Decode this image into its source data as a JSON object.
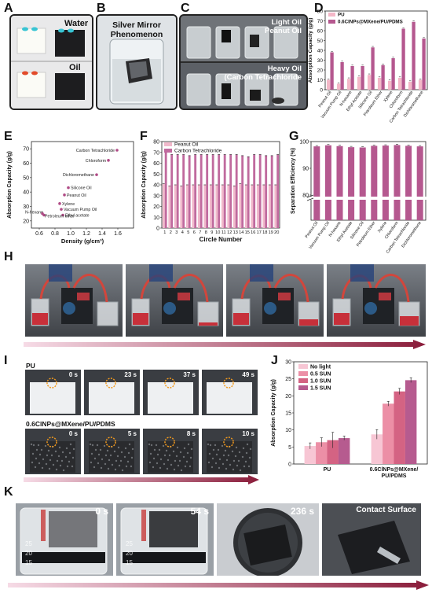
{
  "panels": {
    "A": "A",
    "B": "B",
    "C": "C",
    "D": "D",
    "E": "E",
    "F": "F",
    "G": "G",
    "H": "H",
    "I": "I",
    "J": "J",
    "K": "K"
  },
  "panel_a": {
    "label_water": "Water",
    "label_oil": "Oil"
  },
  "panel_b": {
    "title": "Silver Mirror Phenomenon"
  },
  "panel_c": {
    "label_light": "Light Oil\nPeanut Oil",
    "label_heavy": "Heavy Oil\n(Carbon Tetrachloride"
  },
  "panel_i": {
    "row1_label": "PU",
    "row2_label": "0.6ClNPs@MXene/PU/PDMS",
    "row1_times": [
      "0 s",
      "23 s",
      "37 s",
      "49 s"
    ],
    "row2_times": [
      "0 s",
      "5 s",
      "8 s",
      "10 s"
    ]
  },
  "panel_k": {
    "times": [
      "0 s",
      "54 s",
      "236 s",
      "Contact Surface"
    ],
    "beaker_marks": [
      "25",
      "20",
      "15"
    ]
  },
  "colors": {
    "pu": "#f4b8c8",
    "comp": "#b5588f",
    "peanut": "#f1b9cb",
    "ccl4": "#c06a9e",
    "arrow_start": "#f6dbe6",
    "arrow_end": "#8a1c3a"
  },
  "chart_data": [
    {
      "id": "D",
      "type": "bar",
      "ylabel": "Absorption Capacity (g/g)",
      "ylim": [
        0,
        80
      ],
      "yticks": [
        0,
        10,
        20,
        30,
        40,
        50,
        60,
        70,
        80
      ],
      "categories": [
        "Peanut Oil",
        "Vacuum Pump Oil",
        "N-hexane",
        "Ethyl Acetate",
        "Silicone Oil",
        "Petroleum Ether",
        "Xylene",
        "Chloroform",
        "Carbon Tetrachloride",
        "Dichloromethane"
      ],
      "series": [
        {
          "name": "PU",
          "values": [
            10,
            6,
            11,
            13,
            15,
            12,
            9,
            12,
            8,
            10
          ]
        },
        {
          "name": "0.6ClNPs@MXene/PU/PDMS",
          "values": [
            38,
            28,
            24,
            24,
            43,
            25,
            32,
            62,
            69,
            52
          ]
        }
      ],
      "legend": "top-left"
    },
    {
      "id": "E",
      "type": "scatter",
      "xlabel": "Density (g/cm³)",
      "ylabel": "Absorption Capacity (g/g)",
      "xlim": [
        0.5,
        1.8
      ],
      "ylim": [
        15,
        75
      ],
      "xticks": [
        "0.6",
        "0.8",
        "1.0",
        "1.2",
        "1.4",
        "1.6"
      ],
      "yticks": [
        "20",
        "30",
        "40",
        "50",
        "60",
        "70"
      ],
      "points": [
        {
          "label": "Carbon Tetrachloride",
          "x": 1.59,
          "y": 69
        },
        {
          "label": "Chloroform",
          "x": 1.48,
          "y": 62
        },
        {
          "label": "Dichloromethane",
          "x": 1.33,
          "y": 52
        },
        {
          "label": "Silicone Oil",
          "x": 0.97,
          "y": 43
        },
        {
          "label": "Peanut Oil",
          "x": 0.92,
          "y": 38
        },
        {
          "label": "Xylene",
          "x": 0.86,
          "y": 32
        },
        {
          "label": "N-hexane",
          "x": 0.66,
          "y": 24
        },
        {
          "label": "Vacuum Pump Oil",
          "x": 0.88,
          "y": 28
        },
        {
          "label": "Ethyl acetate",
          "x": 0.9,
          "y": 24
        },
        {
          "label": "Petroleum ether",
          "x": 0.64,
          "y": 25
        }
      ]
    },
    {
      "id": "F",
      "type": "bar",
      "xlabel": "Circle Number",
      "ylabel": "Absorption Capacity (g/g)",
      "ylim": [
        0,
        80
      ],
      "yticks": [
        0,
        10,
        20,
        30,
        40,
        50,
        60,
        70,
        80
      ],
      "categories": [
        "1",
        "2",
        "3",
        "4",
        "5",
        "6",
        "7",
        "8",
        "9",
        "10",
        "11",
        "12",
        "13",
        "14",
        "15",
        "16",
        "17",
        "18",
        "19",
        "20"
      ],
      "series": [
        {
          "name": "Peanut Oil",
          "values": [
            41,
            39,
            40,
            39,
            40,
            40,
            40,
            40,
            40,
            40,
            40,
            40,
            39,
            41,
            40,
            40,
            40,
            40,
            40,
            40
          ]
        },
        {
          "name": "Carbon Tetrachloride",
          "values": [
            70,
            68,
            68,
            68,
            67,
            68,
            68,
            68,
            68,
            68,
            68,
            68,
            68,
            67,
            66,
            68,
            68,
            67,
            67,
            68
          ]
        }
      ],
      "legend": "top-left"
    },
    {
      "id": "G",
      "type": "bar",
      "ylabel": "Separation Efficiency (%)",
      "ylim": [
        0,
        100
      ],
      "yticks": [
        "80",
        "90",
        "100"
      ],
      "categories": [
        "Peanut Oil",
        "Vacuum Pump Oil",
        "N-hexane",
        "Ethyl Acetate",
        "Silicone Oil",
        "Petroleum Ether",
        "Xylene",
        "Chloroform",
        "Carbon Tetrachloride",
        "Dichloromethane"
      ],
      "values": [
        98.2,
        98.6,
        98.3,
        97.9,
        97.8,
        98.4,
        98.5,
        98.7,
        98.4,
        98.2
      ]
    },
    {
      "id": "J",
      "type": "bar",
      "ylabel": "Absorption Capacity (g/g)",
      "ylim": [
        0,
        30
      ],
      "yticks": [
        0,
        5,
        10,
        15,
        20,
        25,
        30
      ],
      "categories": [
        "PU",
        "0.6ClNPs@MXene/\nPU/PDMS"
      ],
      "series": [
        {
          "name": "No light",
          "values": [
            5.3,
            8.7
          ],
          "color": "#f7c6d4"
        },
        {
          "name": "0.5 SUN",
          "values": [
            6.4,
            17.7
          ],
          "color": "#ec8fa6"
        },
        {
          "name": "1.0 SUN",
          "values": [
            7.0,
            21.3
          ],
          "color": "#d46383"
        },
        {
          "name": "1.5 SUN",
          "values": [
            7.6,
            24.6
          ],
          "color": "#b65b8f"
        }
      ],
      "legend": "top-left"
    }
  ]
}
